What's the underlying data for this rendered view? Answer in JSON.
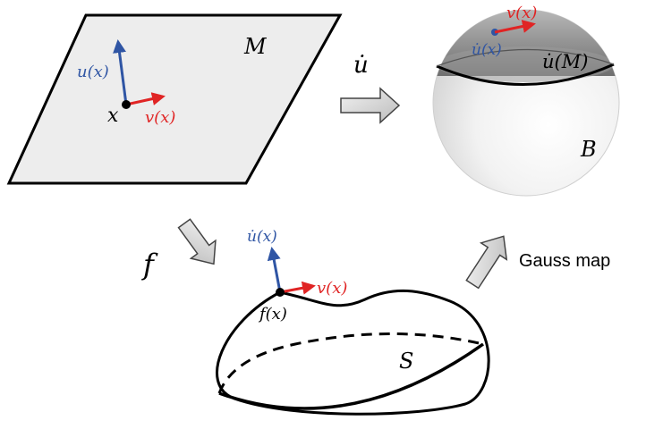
{
  "labels": {
    "plane": "M",
    "point": "x",
    "u_vec": "u(x)",
    "v_vec": "v(x)",
    "map_u": "u̇",
    "sphere_region": "u̇(M)",
    "sphere": "B",
    "sphere_u": "u̇(x)",
    "sphere_v": "v(x)",
    "map_f": "f",
    "surface_normal": "u̇(x)",
    "surface_v": "v(x)",
    "surface_point": "f(x)",
    "surface": "S",
    "gauss_map": "Gauss map"
  },
  "colors": {
    "u_vector": "#2f55a4",
    "v_vector": "#e02424",
    "plane_fill": "#ededed",
    "cap_fill": "#8a8a8a",
    "arrow_fill": "#dcdcdc",
    "stroke": "#000000"
  }
}
